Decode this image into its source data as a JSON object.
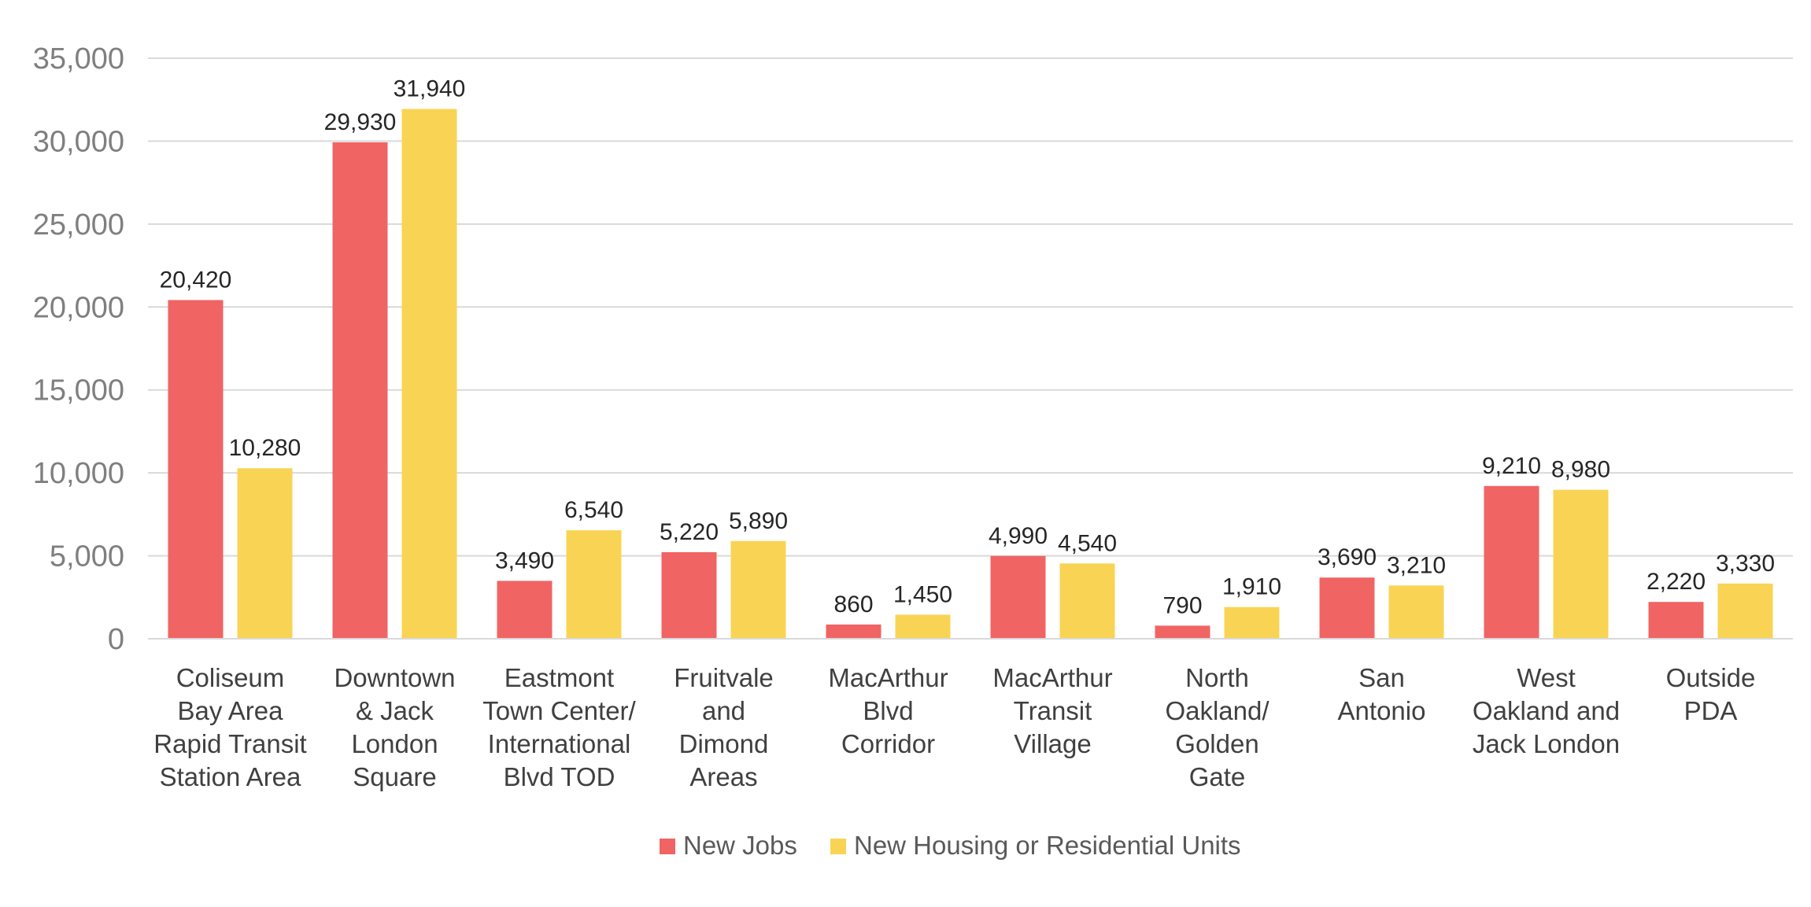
{
  "chart_data": {
    "type": "bar",
    "categories": [
      [
        "Coliseum",
        "Bay Area",
        "Rapid Transit",
        "Station Area"
      ],
      [
        "Downtown",
        "& Jack",
        "London",
        "Square"
      ],
      [
        "Eastmont",
        "Town Center/",
        "International",
        "Blvd TOD"
      ],
      [
        "Fruitvale",
        "and",
        "Dimond",
        "Areas"
      ],
      [
        "MacArthur",
        "Blvd",
        "Corridor"
      ],
      [
        "MacArthur",
        "Transit",
        "Village"
      ],
      [
        "North",
        "Oakland/",
        "Golden",
        "Gate"
      ],
      [
        "San",
        "Antonio"
      ],
      [
        "West",
        "Oakland and",
        "Jack London"
      ],
      [
        "Outside",
        "PDA"
      ]
    ],
    "series": [
      {
        "name": "New Jobs",
        "color": "#f06464",
        "values": [
          20420,
          29930,
          3490,
          5220,
          860,
          4990,
          790,
          3690,
          9210,
          2220
        ],
        "labels": [
          "20,420",
          "29,930",
          "3,490",
          "5,220",
          "860",
          "4,990",
          "790",
          "3,690",
          "9,210",
          "2,220"
        ]
      },
      {
        "name": "New Housing or Residential Units",
        "color": "#f9d454",
        "values": [
          10280,
          31940,
          6540,
          5890,
          1450,
          4540,
          1910,
          3210,
          8980,
          3330
        ],
        "labels": [
          "10,280",
          "31,940",
          "6,540",
          "5,890",
          "1,450",
          "4,540",
          "1,910",
          "3,210",
          "8,980",
          "3,330"
        ]
      }
    ],
    "yticks": [
      0,
      5000,
      10000,
      15000,
      20000,
      25000,
      30000,
      35000
    ],
    "ytick_labels": [
      "0",
      "5,000",
      "10,000",
      "15,000",
      "20,000",
      "25,000",
      "30,000",
      "35,000"
    ],
    "ylim": [
      0,
      35000
    ],
    "grid": true,
    "legend_position": "bottom-center",
    "gridline_color": "#d9d9d9",
    "title": "",
    "xlabel": "",
    "ylabel": ""
  }
}
